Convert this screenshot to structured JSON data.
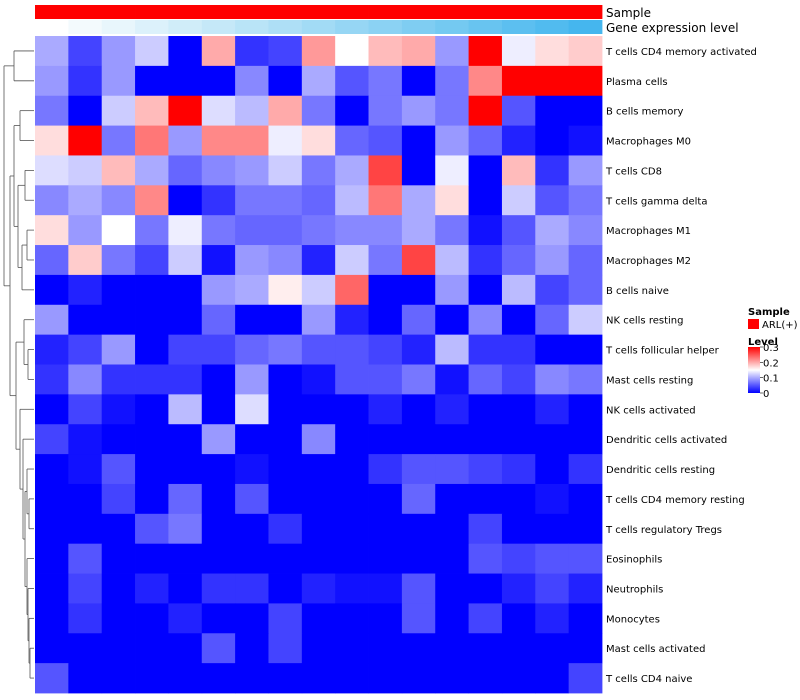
{
  "chart_data": {
    "type": "heatmap",
    "title": "",
    "color_scale": {
      "low": "#0000ff",
      "mid": "#ffffff",
      "high": "#ff0000",
      "vmin": 0,
      "vmid": 0.15,
      "vmax": 0.3
    },
    "annotation_tracks": [
      {
        "name": "Sample",
        "colors": [
          "#ff0000",
          "#ff0000",
          "#ff0000",
          "#ff0000",
          "#ff0000",
          "#ff0000",
          "#ff0000",
          "#ff0000",
          "#ff0000",
          "#ff0000",
          "#ff0000",
          "#ff0000",
          "#ff0000",
          "#ff0000",
          "#ff0000",
          "#ff0000",
          "#ff0000"
        ]
      },
      {
        "name": "Gene expression level",
        "colors": [
          "#ffffff",
          "#f3fafd",
          "#e8f6fc",
          "#dcf1fb",
          "#d0edf9",
          "#c5e8f8",
          "#b9e4f7",
          "#aedff6",
          "#a2dbf5",
          "#96d6f4",
          "#8bd2f3",
          "#7fcdf2",
          "#74c9f1",
          "#68c4f0",
          "#5cbff0",
          "#51bbef",
          "#45b6ee"
        ]
      }
    ],
    "rows": [
      "T cells CD4 memory activated",
      "Plasma cells",
      "B cells memory",
      "Macrophages M0",
      "T cells CD8",
      "T cells gamma delta",
      "Macrophages M1",
      "Macrophages M2",
      "B cells naive",
      "NK cells resting",
      "T cells follicular helper",
      "Mast cells resting",
      "NK cells activated",
      "Dendritic cells activated",
      "Dendritic cells resting",
      "T cells CD4 memory resting",
      "T cells regulatory  Tregs",
      "Eosinophils",
      "Neutrophils",
      "Monocytes",
      "Mast cells activated",
      "T cells CD4 naive"
    ],
    "values": [
      [
        0.1,
        0.04,
        0.09,
        0.12,
        0.0,
        0.2,
        0.03,
        0.04,
        0.21,
        0.15,
        0.19,
        0.2,
        0.09,
        0.3,
        0.14,
        0.17,
        0.18
      ],
      [
        0.09,
        0.03,
        0.09,
        0.0,
        0.0,
        0.0,
        0.08,
        0.0,
        0.1,
        0.05,
        0.07,
        0.0,
        0.07,
        0.22,
        0.3,
        0.3,
        0.3
      ],
      [
        0.07,
        0.0,
        0.12,
        0.19,
        0.3,
        0.13,
        0.11,
        0.2,
        0.07,
        0.0,
        0.07,
        0.09,
        0.07,
        0.3,
        0.05,
        0.0,
        0.0
      ],
      [
        0.17,
        0.3,
        0.07,
        0.23,
        0.09,
        0.22,
        0.22,
        0.14,
        0.17,
        0.06,
        0.05,
        0.0,
        0.09,
        0.06,
        0.02,
        0.0,
        0.01
      ],
      [
        0.13,
        0.12,
        0.19,
        0.1,
        0.06,
        0.08,
        0.09,
        0.12,
        0.07,
        0.1,
        0.26,
        0.0,
        0.14,
        0.0,
        0.19,
        0.03,
        0.09
      ],
      [
        0.08,
        0.1,
        0.08,
        0.22,
        0.0,
        0.03,
        0.07,
        0.07,
        0.06,
        0.11,
        0.23,
        0.1,
        0.17,
        0.0,
        0.12,
        0.05,
        0.07
      ],
      [
        0.17,
        0.09,
        0.15,
        0.07,
        0.14,
        0.07,
        0.06,
        0.06,
        0.07,
        0.08,
        0.08,
        0.1,
        0.07,
        0.01,
        0.05,
        0.1,
        0.08
      ],
      [
        0.06,
        0.18,
        0.07,
        0.04,
        0.12,
        0.01,
        0.09,
        0.08,
        0.02,
        0.12,
        0.07,
        0.26,
        0.11,
        0.03,
        0.06,
        0.09,
        0.06
      ],
      [
        0.0,
        0.02,
        0.0,
        0.0,
        0.0,
        0.09,
        0.1,
        0.16,
        0.12,
        0.24,
        0.0,
        0.0,
        0.09,
        0.0,
        0.11,
        0.04,
        0.06
      ],
      [
        0.09,
        0.0,
        0.0,
        0.0,
        0.0,
        0.06,
        0.0,
        0.0,
        0.09,
        0.02,
        0.0,
        0.06,
        0.0,
        0.08,
        0.0,
        0.06,
        0.12
      ],
      [
        0.02,
        0.04,
        0.09,
        0.0,
        0.04,
        0.04,
        0.06,
        0.07,
        0.05,
        0.05,
        0.04,
        0.02,
        0.11,
        0.03,
        0.03,
        0.0,
        0.0
      ],
      [
        0.03,
        0.08,
        0.03,
        0.03,
        0.03,
        0.0,
        0.09,
        0.0,
        0.01,
        0.05,
        0.05,
        0.07,
        0.01,
        0.06,
        0.04,
        0.08,
        0.07
      ],
      [
        0.0,
        0.04,
        0.01,
        0.0,
        0.11,
        0.0,
        0.13,
        0.0,
        0.0,
        0.0,
        0.02,
        0.0,
        0.02,
        0.0,
        0.0,
        0.02,
        0.0
      ],
      [
        0.04,
        0.01,
        0.0,
        0.0,
        0.0,
        0.09,
        0.0,
        0.0,
        0.08,
        0.0,
        0.0,
        0.0,
        0.0,
        0.0,
        0.0,
        0.0,
        0.0
      ],
      [
        0.0,
        0.01,
        0.05,
        0.0,
        0.0,
        0.0,
        0.01,
        0.0,
        0.0,
        0.0,
        0.03,
        0.05,
        0.05,
        0.04,
        0.03,
        0.0,
        0.03
      ],
      [
        0.0,
        0.0,
        0.04,
        0.0,
        0.06,
        0.0,
        0.05,
        0.0,
        0.0,
        0.0,
        0.0,
        0.06,
        0.0,
        0.0,
        0.0,
        0.01,
        0.0
      ],
      [
        0.0,
        0.0,
        0.0,
        0.05,
        0.07,
        0.0,
        0.0,
        0.03,
        0.0,
        0.0,
        0.0,
        0.0,
        0.0,
        0.04,
        0.0,
        0.0,
        0.0
      ],
      [
        0.0,
        0.05,
        0.0,
        0.0,
        0.0,
        0.0,
        0.0,
        0.0,
        0.0,
        0.0,
        0.0,
        0.0,
        0.0,
        0.05,
        0.04,
        0.05,
        0.05
      ],
      [
        0.0,
        0.04,
        0.0,
        0.02,
        0.0,
        0.03,
        0.03,
        0.0,
        0.02,
        0.01,
        0.01,
        0.05,
        0.0,
        0.0,
        0.02,
        0.04,
        0.02
      ],
      [
        0.0,
        0.03,
        0.0,
        0.0,
        0.02,
        0.0,
        0.0,
        0.04,
        0.0,
        0.0,
        0.0,
        0.05,
        0.0,
        0.04,
        0.0,
        0.02,
        0.0
      ],
      [
        0.0,
        0.0,
        0.0,
        0.0,
        0.0,
        0.05,
        0.0,
        0.04,
        0.0,
        0.0,
        0.0,
        0.0,
        0.0,
        0.0,
        0.0,
        0.0,
        0.0
      ],
      [
        0.05,
        0.0,
        0.0,
        0.0,
        0.0,
        0.0,
        0.0,
        0.0,
        0.0,
        0.0,
        0.0,
        0.0,
        0.0,
        0.0,
        0.0,
        0.0,
        0.04
      ]
    ],
    "legend": {
      "placement": "right",
      "sample_title": "Sample",
      "sample_items": [
        {
          "label": "ARL(+)",
          "color": "#ff0000"
        }
      ],
      "level_title": "Level",
      "level_ticks": [
        {
          "label": "0.3",
          "value": 0.3
        },
        {
          "label": "0.2",
          "value": 0.2
        },
        {
          "label": "0.1",
          "value": 0.1
        },
        {
          "label": "0",
          "value": 0
        }
      ]
    },
    "dendrogram": "rows"
  }
}
